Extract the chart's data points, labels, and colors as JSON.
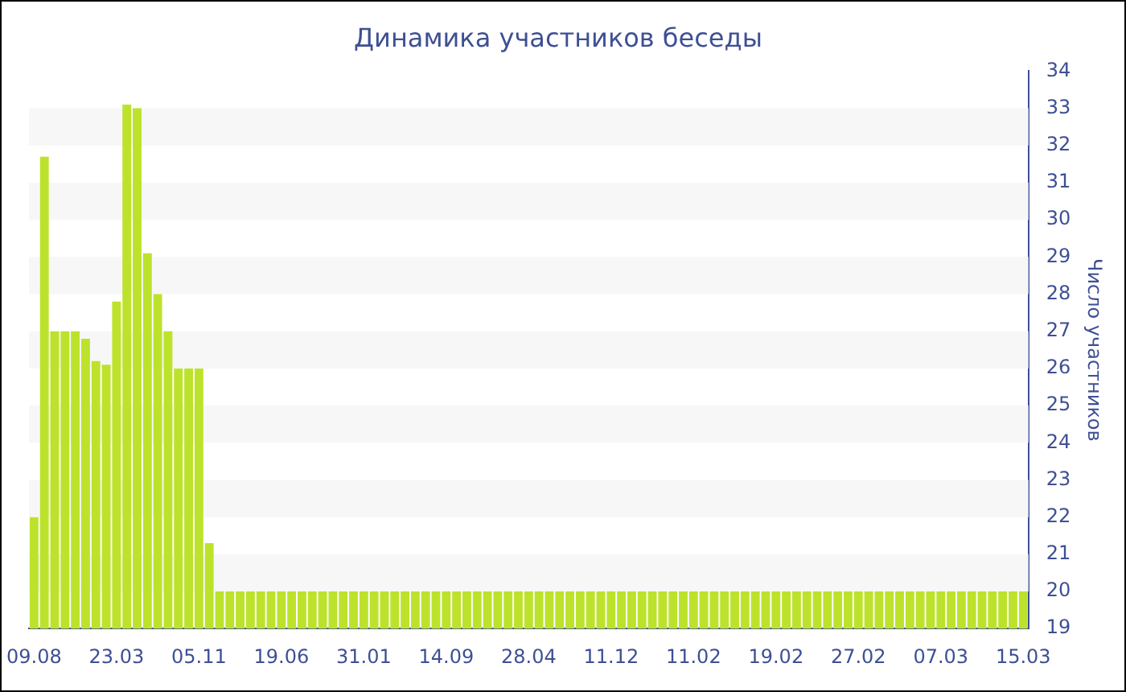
{
  "chart_data": {
    "type": "bar",
    "title": "Динамика участников беседы",
    "ylabel": "Число участников",
    "categories": [
      "09.08",
      null,
      null,
      null,
      null,
      null,
      null,
      null,
      "23.03",
      null,
      null,
      null,
      null,
      null,
      null,
      null,
      "05.11",
      null,
      null,
      null,
      null,
      null,
      null,
      null,
      "19.06",
      null,
      null,
      null,
      null,
      null,
      null,
      null,
      "31.01",
      null,
      null,
      null,
      null,
      null,
      null,
      null,
      "14.09",
      null,
      null,
      null,
      null,
      null,
      null,
      null,
      "28.04",
      null,
      null,
      null,
      null,
      null,
      null,
      null,
      "11.12",
      null,
      null,
      null,
      null,
      null,
      null,
      null,
      "11.02",
      null,
      null,
      null,
      null,
      null,
      null,
      null,
      "19.02",
      null,
      null,
      null,
      null,
      null,
      null,
      null,
      "27.02",
      null,
      null,
      null,
      null,
      null,
      null,
      null,
      "07.03",
      null,
      null,
      null,
      null,
      null,
      null,
      null,
      "15.03"
    ],
    "values": [
      22,
      31.7,
      27,
      27,
      27,
      26.8,
      26.2,
      26.1,
      27.8,
      33.1,
      33,
      29.1,
      28,
      27,
      26,
      26,
      26,
      21.3,
      20,
      20,
      20,
      20,
      20,
      20,
      20,
      20,
      20,
      20,
      20,
      20,
      20,
      20,
      20,
      20,
      20,
      20,
      20,
      20,
      20,
      20,
      20,
      20,
      20,
      20,
      20,
      20,
      20,
      20,
      20,
      20,
      20,
      20,
      20,
      20,
      20,
      20,
      20,
      20,
      20,
      20,
      20,
      20,
      20,
      20,
      20,
      20,
      20,
      20,
      20,
      20,
      20,
      20,
      20,
      20,
      20,
      20,
      20,
      20,
      20,
      20,
      20,
      20,
      20,
      20,
      20,
      20,
      20,
      20,
      20,
      20,
      20,
      20,
      20,
      20,
      20,
      20,
      20
    ],
    "color": "#bde22c",
    "ylim": [
      19,
      34
    ],
    "yticks": [
      19,
      20,
      21,
      22,
      23,
      24,
      25,
      26,
      27,
      28,
      29,
      30,
      31,
      32,
      33,
      34
    ],
    "legend": false
  }
}
